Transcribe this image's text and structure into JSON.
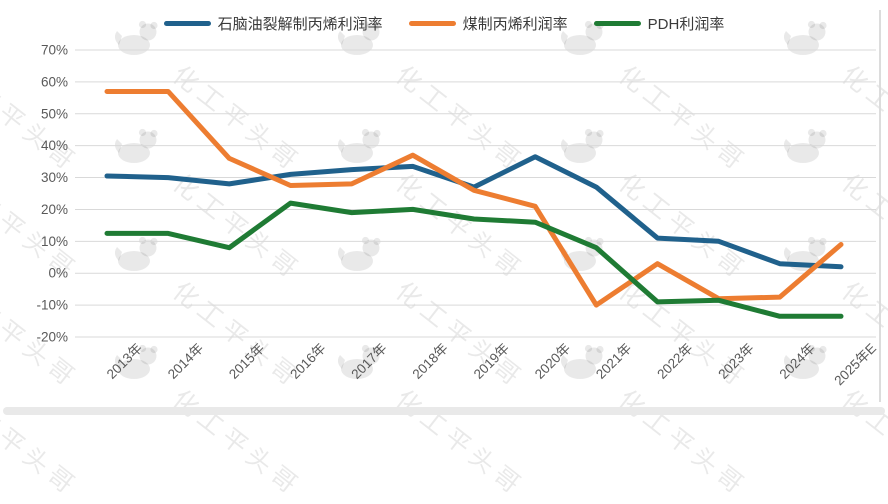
{
  "chart_data": {
    "type": "line",
    "title": "",
    "categories": [
      "2013年",
      "2014年",
      "2015年",
      "2016年",
      "2017年",
      "2018年",
      "2019年",
      "2020年",
      "2021年",
      "2022年",
      "2023年",
      "2024年",
      "2025年E"
    ],
    "series": [
      {
        "name": "石脑油裂解制丙烯利润率",
        "color": "#20618C",
        "values": [
          30.5,
          30,
          28,
          31,
          32.5,
          33.5,
          27,
          36.5,
          27,
          11,
          10,
          3,
          2
        ]
      },
      {
        "name": "煤制丙烯利润率",
        "color": "#ED7D31",
        "values": [
          57,
          57,
          36,
          27.5,
          28,
          37,
          26,
          21,
          -10,
          3,
          -8,
          -7.5,
          9
        ]
      },
      {
        "name": "PDH利润率",
        "color": "#1F7B34",
        "values": [
          12.5,
          12.5,
          8,
          22,
          19,
          20,
          17,
          16,
          8,
          -9,
          -8.5,
          -13.5,
          -13.5
        ]
      }
    ],
    "ylim": [
      -20,
      70
    ],
    "y_tick_step": 10,
    "y_tick_labels": [
      "70%",
      "60%",
      "50%",
      "40%",
      "30%",
      "20%",
      "10%",
      "0%",
      "-10%",
      "-20%"
    ],
    "grid": true,
    "legend_position": "top"
  },
  "watermark": {
    "text": "化工平头哥",
    "mascot": "honey-badger-icon"
  },
  "colors": {
    "grid": "#D9D9D9",
    "tick_text": "#595959",
    "legend_text": "#3A3A3A",
    "watermark": "rgba(0,0,0,0.085)"
  }
}
